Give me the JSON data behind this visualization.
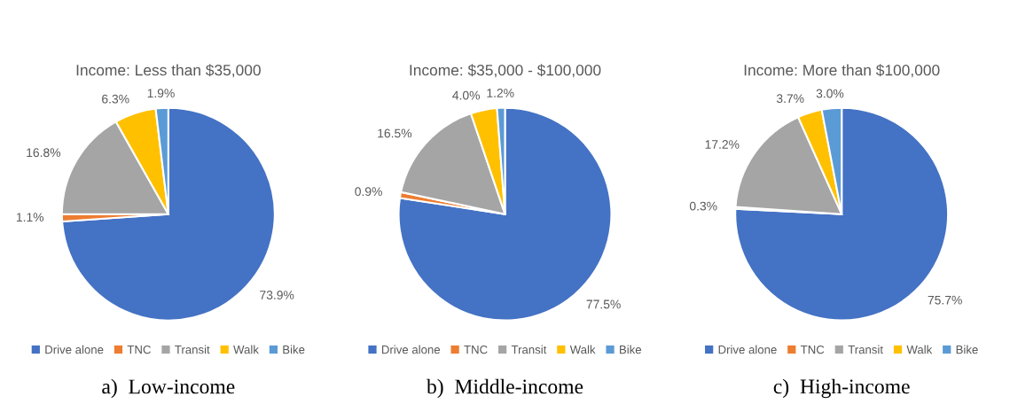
{
  "chart_data": [
    {
      "type": "pie",
      "title": "Income: Less than $35,000",
      "categories": [
        "Drive alone",
        "TNC",
        "Transit",
        "Walk",
        "Bike"
      ],
      "values": [
        73.9,
        1.1,
        16.8,
        6.3,
        1.9
      ],
      "value_labels": [
        "73.9%",
        "1.1%",
        "16.8%",
        "6.3%",
        "1.9%"
      ],
      "colors": [
        "#4472c4",
        "#ed7d31",
        "#a5a5a5",
        "#ffc000",
        "#5b9bd5"
      ],
      "legend": "bottom",
      "annotations": [
        "a)  Low-income"
      ]
    },
    {
      "type": "pie",
      "title": "Income: $35,000 - $100,000",
      "categories": [
        "Drive alone",
        "TNC",
        "Transit",
        "Walk",
        "Bike"
      ],
      "values": [
        77.5,
        0.9,
        16.5,
        4.0,
        1.2
      ],
      "value_labels": [
        "77.5%",
        "0.9%",
        "16.5%",
        "4.0%",
        "1.2%"
      ],
      "colors": [
        "#4472c4",
        "#ed7d31",
        "#a5a5a5",
        "#ffc000",
        "#5b9bd5"
      ],
      "legend": "bottom",
      "annotations": [
        "b)  Middle-income"
      ]
    },
    {
      "type": "pie",
      "title": "Income: More than $100,000",
      "categories": [
        "Drive alone",
        "TNC",
        "Transit",
        "Walk",
        "Bike"
      ],
      "values": [
        75.7,
        0.3,
        17.2,
        3.7,
        3.0
      ],
      "value_labels": [
        "75.7%",
        "0.3%",
        "17.2%",
        "3.7%",
        "3.0%"
      ],
      "colors": [
        "#4472c4",
        "#ed7d31",
        "#a5a5a5",
        "#ffc000",
        "#5b9bd5"
      ],
      "legend": "bottom",
      "annotations": [
        "c)  High-income"
      ]
    }
  ]
}
